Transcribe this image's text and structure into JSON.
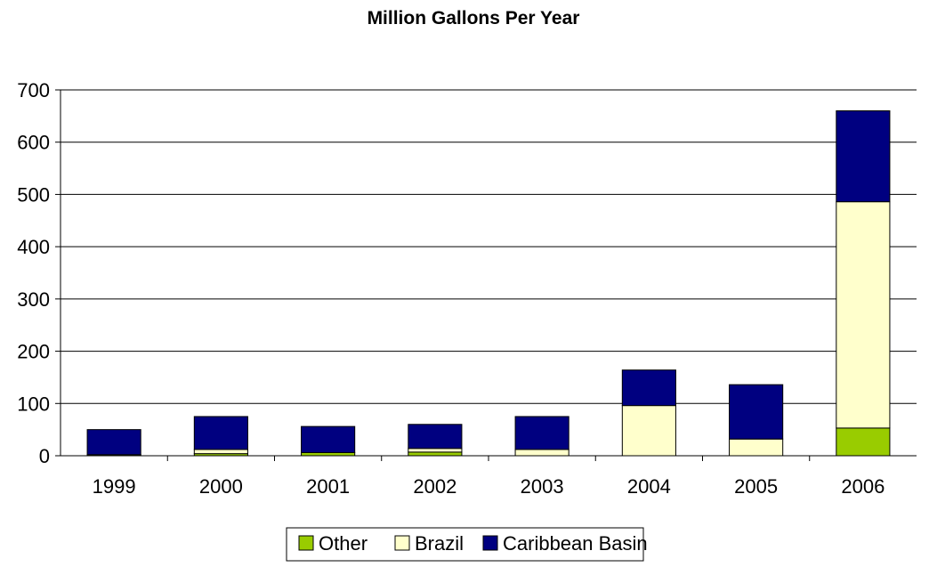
{
  "colors": {
    "Other": "#99cc00",
    "Brazil": "#ffffcc",
    "Caribbean Basin": "#000080",
    "outline": "#000000",
    "grid": "#000000",
    "background": "#ffffff"
  },
  "chart_data": {
    "type": "bar",
    "stacked": true,
    "title": "Million Gallons Per Year",
    "xlabel": "",
    "ylabel": "",
    "categories": [
      "1999",
      "2000",
      "2001",
      "2002",
      "2003",
      "2004",
      "2005",
      "2006"
    ],
    "yticks": [
      "0",
      "100",
      "200",
      "300",
      "400",
      "500",
      "600",
      "700"
    ],
    "ylim": [
      0,
      700
    ],
    "grid": true,
    "legend_position": "bottom",
    "series": [
      {
        "name": "Other",
        "values": [
          2,
          4,
          6,
          7,
          0,
          0,
          0,
          53
        ]
      },
      {
        "name": "Brazil",
        "values": [
          0,
          8,
          0,
          7,
          12,
          96,
          32,
          433
        ]
      },
      {
        "name": "Caribbean Basin",
        "values": [
          48,
          63,
          50,
          46,
          63,
          68,
          104,
          174
        ]
      }
    ]
  }
}
